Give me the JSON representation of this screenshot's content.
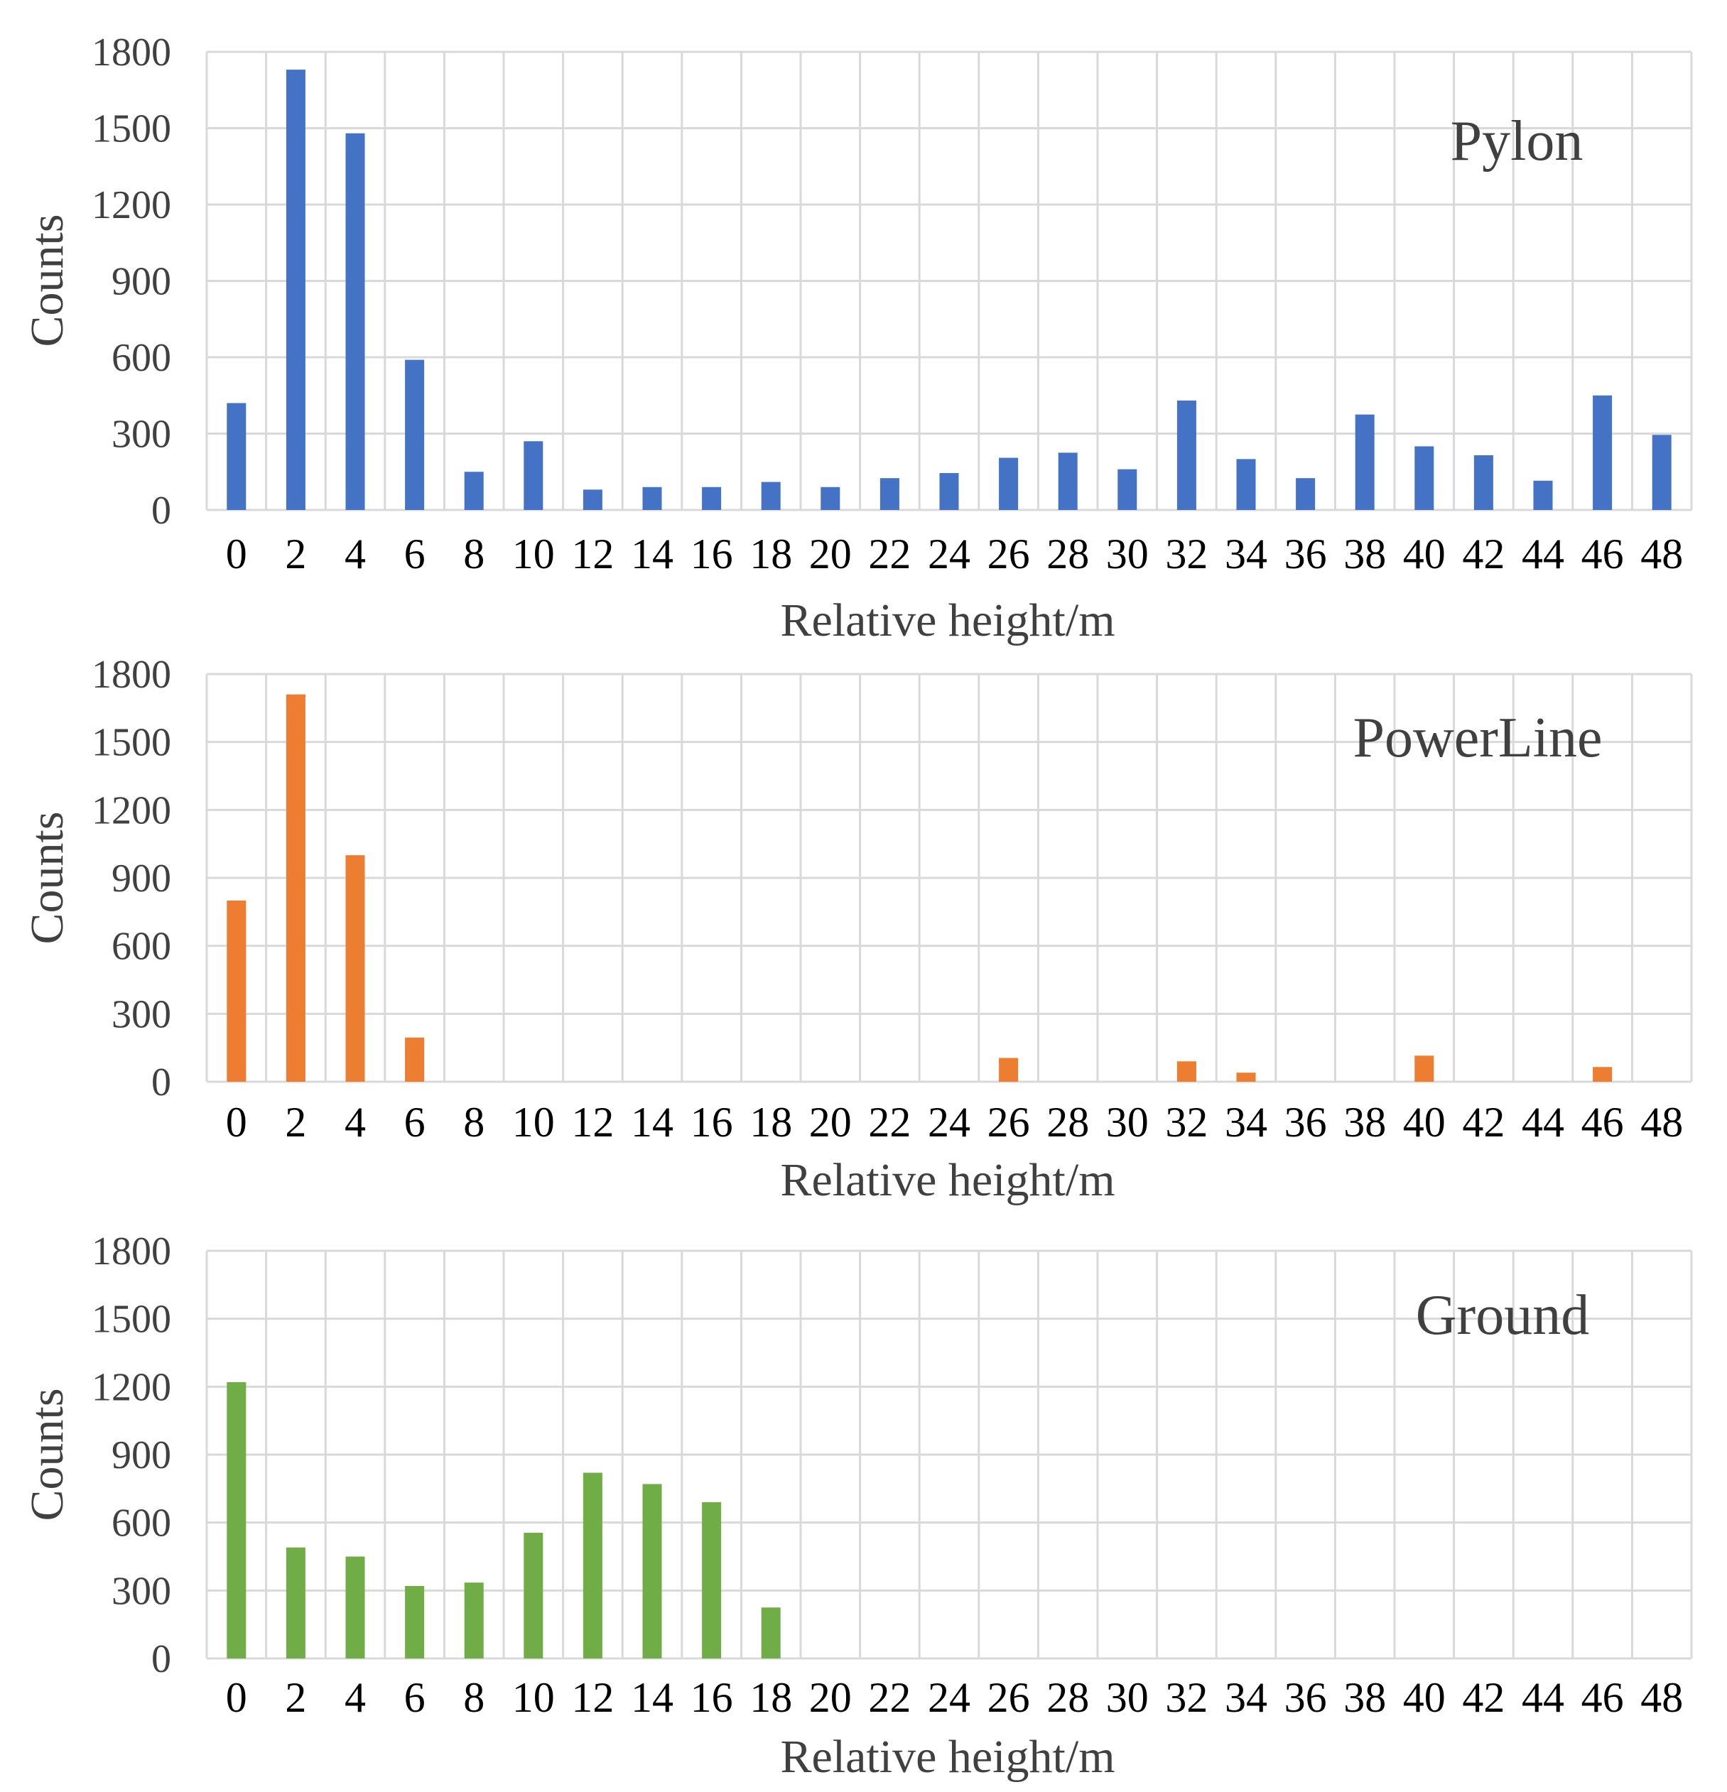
{
  "chart_data": [
    {
      "type": "bar",
      "title": "Pylon",
      "xlabel": "Relative height/m",
      "ylabel": "Counts",
      "ylim": [
        0,
        1800
      ],
      "yticks": [
        "0",
        "300",
        "600",
        "900",
        "1200",
        "1500",
        "1800"
      ],
      "categories": [
        "0",
        "2",
        "4",
        "6",
        "8",
        "10",
        "12",
        "14",
        "16",
        "18",
        "20",
        "22",
        "24",
        "26",
        "28",
        "30",
        "32",
        "34",
        "36",
        "38",
        "40",
        "42",
        "44",
        "46",
        "48"
      ],
      "values": [
        420,
        1730,
        1480,
        590,
        150,
        270,
        80,
        90,
        90,
        110,
        90,
        125,
        145,
        205,
        225,
        160,
        430,
        200,
        125,
        375,
        250,
        215,
        115,
        450,
        295
      ],
      "color": "#4472C4"
    },
    {
      "type": "bar",
      "title": "PowerLine",
      "xlabel": "Relative height/m",
      "ylabel": "Counts",
      "ylim": [
        0,
        1800
      ],
      "yticks": [
        "0",
        "300",
        "600",
        "900",
        "1200",
        "1500",
        "1800"
      ],
      "categories": [
        "0",
        "2",
        "4",
        "6",
        "8",
        "10",
        "12",
        "14",
        "16",
        "18",
        "20",
        "22",
        "24",
        "26",
        "28",
        "30",
        "32",
        "34",
        "36",
        "38",
        "40",
        "42",
        "44",
        "46",
        "48"
      ],
      "values": [
        800,
        1710,
        1000,
        195,
        0,
        0,
        0,
        0,
        0,
        0,
        0,
        0,
        0,
        105,
        0,
        0,
        90,
        40,
        0,
        0,
        115,
        0,
        0,
        65,
        0
      ],
      "color": "#ED7D31"
    },
    {
      "type": "bar",
      "title": "Ground",
      "xlabel": "Relative height/m",
      "ylabel": "Counts",
      "ylim": [
        0,
        1800
      ],
      "yticks": [
        "0",
        "300",
        "600",
        "900",
        "1200",
        "1500",
        "1800"
      ],
      "categories": [
        "0",
        "2",
        "4",
        "6",
        "8",
        "10",
        "12",
        "14",
        "16",
        "18",
        "20",
        "22",
        "24",
        "26",
        "28",
        "30",
        "32",
        "34",
        "36",
        "38",
        "40",
        "42",
        "44",
        "46",
        "48"
      ],
      "values": [
        1220,
        490,
        450,
        320,
        335,
        555,
        820,
        770,
        690,
        225,
        0,
        0,
        0,
        0,
        0,
        0,
        0,
        0,
        0,
        0,
        0,
        0,
        0,
        0,
        0
      ],
      "color": "#70AD47"
    }
  ]
}
